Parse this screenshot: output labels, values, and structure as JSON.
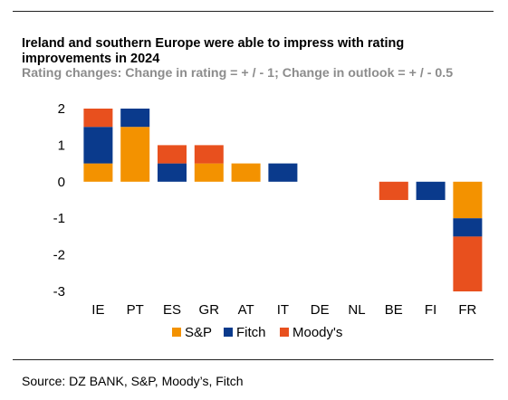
{
  "header": {
    "title": "Ireland and southern Europe were able to impress with rating improvements in 2024",
    "subtitle": "Rating changes: Change in rating = + / - 1; Change in outlook = + / - 0.5"
  },
  "footer": {
    "source": "Source: DZ BANK, S&P, Moody’s, Fitch"
  },
  "colors": {
    "sp": "#f39200",
    "fitch": "#0a3a8c",
    "moodys": "#e8501e"
  },
  "chart_data": {
    "type": "bar",
    "stacked": true,
    "title": "Ireland and southern Europe were able to impress with rating improvements in 2024",
    "subtitle": "Rating changes: Change in rating = + / - 1; Change in outlook = + / - 0.5",
    "categories": [
      "IE",
      "PT",
      "ES",
      "GR",
      "AT",
      "IT",
      "DE",
      "NL",
      "BE",
      "FI",
      "FR"
    ],
    "series": [
      {
        "name": "S&P",
        "color": "#f39200",
        "values": [
          0.5,
          1.5,
          0,
          0.5,
          0.5,
          0,
          0,
          0,
          0,
          0,
          -1
        ]
      },
      {
        "name": "Fitch",
        "color": "#0a3a8c",
        "values": [
          1,
          0.5,
          0.5,
          0,
          0,
          0.5,
          0,
          0,
          0,
          -0.5,
          -0.5
        ]
      },
      {
        "name": "Moody's",
        "color": "#e8501e",
        "values": [
          0.5,
          0,
          0.5,
          0.5,
          0,
          0,
          0,
          0,
          -0.5,
          0,
          -1.5
        ]
      }
    ],
    "ylim": [
      -3,
      2
    ],
    "yticks": [
      2,
      1,
      0,
      -1,
      -2,
      -3
    ],
    "grid": false,
    "legend_position": "bottom"
  }
}
